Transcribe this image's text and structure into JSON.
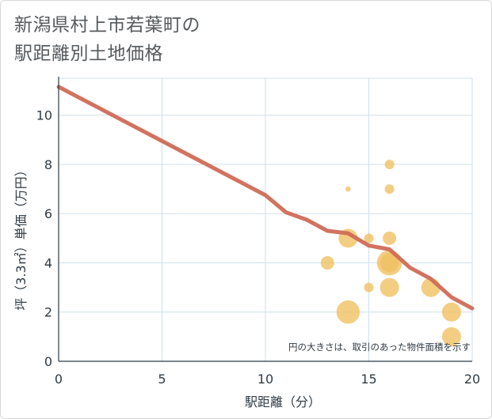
{
  "chart_data": {
    "type": "scatter",
    "title_line1": "新潟県村上市若葉町の",
    "title_line2": "駅距離別土地価格",
    "xlabel": "駅距離（分）",
    "ylabel": "坪（3.3㎡）単価（万円）",
    "xlim": [
      0,
      20
    ],
    "ylim": [
      0,
      11.5
    ],
    "xticks": [
      0,
      5,
      10,
      15,
      20
    ],
    "yticks": [
      0,
      2,
      4,
      6,
      8,
      10
    ],
    "grid": true,
    "note": "円の大きさは、取引のあった物件面積を示す",
    "colors": {
      "line": "#d06a56",
      "bubble": "#f0c062",
      "grid": "#cfe0ea"
    },
    "trend_line": {
      "name": "trend",
      "x": [
        0,
        10,
        11,
        12,
        13,
        14,
        15,
        16,
        17,
        18,
        19,
        20
      ],
      "y": [
        11.15,
        6.75,
        6.05,
        5.75,
        5.3,
        5.2,
        4.7,
        4.55,
        3.8,
        3.35,
        2.6,
        2.15
      ]
    },
    "points": [
      {
        "x": 13,
        "y": 4,
        "size": 2
      },
      {
        "x": 14,
        "y": 5,
        "size": 4
      },
      {
        "x": 14,
        "y": 2,
        "size": 6
      },
      {
        "x": 14,
        "y": 7,
        "size": 0.3
      },
      {
        "x": 15,
        "y": 5,
        "size": 1
      },
      {
        "x": 15,
        "y": 3,
        "size": 1
      },
      {
        "x": 16,
        "y": 8,
        "size": 1
      },
      {
        "x": 16,
        "y": 7,
        "size": 1
      },
      {
        "x": 16,
        "y": 5,
        "size": 2
      },
      {
        "x": 16,
        "y": 4,
        "size": 7
      },
      {
        "x": 16,
        "y": 4,
        "size": 4
      },
      {
        "x": 16,
        "y": 3,
        "size": 4
      },
      {
        "x": 18,
        "y": 3,
        "size": 4
      },
      {
        "x": 19,
        "y": 2,
        "size": 4
      },
      {
        "x": 19,
        "y": 1,
        "size": 4
      }
    ]
  }
}
